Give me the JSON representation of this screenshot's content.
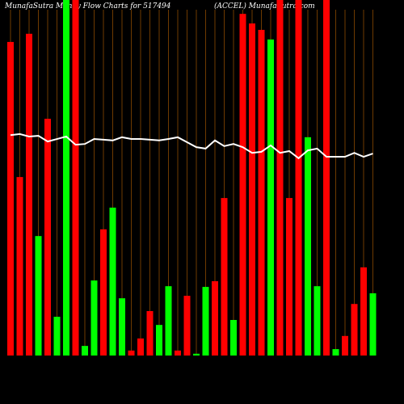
{
  "chart_data": {
    "type": "bar",
    "title": "MunafaSutra  Money Flow  Charts for 517494",
    "subtitle": "(ACCEL) MunafaSutra.com",
    "categories": [
      null,
      null,
      null,
      null,
      null,
      null,
      null,
      null,
      null,
      null,
      null,
      null,
      null,
      null,
      null,
      null,
      null,
      null,
      null,
      null,
      null,
      null,
      null,
      null,
      null,
      null,
      null,
      null,
      null,
      null,
      null,
      null,
      null,
      null,
      null,
      null,
      null,
      null,
      null,
      null
    ],
    "values": [
      88.2,
      50.2,
      90.5,
      33.6,
      66.6,
      10.9,
      100,
      100,
      2.7,
      21.1,
      35.5,
      41.6,
      16.1,
      1.4,
      4.8,
      12.5,
      8.6,
      19.5,
      1.4,
      16.8,
      0.5,
      19.3,
      20.9,
      44.3,
      10,
      96.1,
      93.4,
      91.6,
      88.9,
      100,
      44.3,
      100,
      61.4,
      19.5,
      100,
      1.8,
      5.5,
      14.5,
      24.8,
      17.5
    ],
    "colors": [
      "#ff0000",
      "#ff0000",
      "#ff0000",
      "#00ff00",
      "#ff0000",
      "#00ff00",
      "#00ff00",
      "#ff0000",
      "#00ff00",
      "#00ff00",
      "#ff0000",
      "#00ff00",
      "#00ff00",
      "#ff0000",
      "#ff0000",
      "#ff0000",
      "#00ff00",
      "#00ff00",
      "#ff0000",
      "#ff0000",
      "#00ff00",
      "#00ff00",
      "#ff0000",
      "#ff0000",
      "#00ff00",
      "#ff0000",
      "#ff0000",
      "#ff0000",
      "#00ff00",
      "#ff0000",
      "#ff0000",
      "#ff0000",
      "#00ff00",
      "#00ff00",
      "#ff0000",
      "#00ff00",
      "#ff0000",
      "#ff0000",
      "#ff0000",
      "#00ff00"
    ],
    "line_values": [
      62.0,
      62.3,
      61.6,
      61.8,
      60.2,
      60.9,
      61.6,
      59.3,
      59.5,
      60.9,
      60.7,
      60.5,
      61.4,
      60.9,
      60.9,
      60.7,
      60.5,
      60.9,
      61.4,
      60.0,
      58.6,
      58.2,
      60.5,
      58.9,
      59.5,
      58.6,
      57.0,
      57.3,
      59.1,
      57.0,
      57.5,
      55.5,
      57.7,
      58.2,
      55.9,
      55.9,
      55.9,
      57.0,
      55.9,
      56.8
    ],
    "line_color": "#ffffff",
    "grid_color": "#8b4a00",
    "ylim": [
      0,
      100
    ]
  }
}
